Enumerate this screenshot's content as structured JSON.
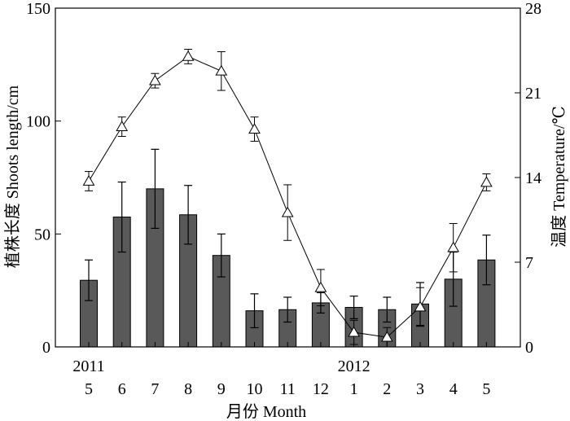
{
  "chart_data": {
    "type": "bar",
    "categories": [
      "5",
      "6",
      "7",
      "8",
      "9",
      "10",
      "11",
      "12",
      "1",
      "2",
      "3",
      "4",
      "5"
    ],
    "year_labels": [
      {
        "text": "2011",
        "category_index": 0
      },
      {
        "text": "2012",
        "category_index": 8
      }
    ],
    "xlabel": "月份 Month",
    "ylabel": "植株长度 Shoots length/cm",
    "ylabel_right": "温度 Temperature/℃",
    "ylim": [
      0,
      150
    ],
    "yticks": [
      0,
      50,
      100,
      150
    ],
    "ylim_right": [
      0,
      28
    ],
    "yticks_right": [
      0,
      7,
      14,
      21,
      28
    ],
    "grid": false,
    "series": [
      {
        "type": "bar",
        "axis": "left",
        "values": [
          29.5,
          57.5,
          70,
          58.5,
          40.5,
          16,
          16.5,
          19.5,
          17.5,
          16.5,
          19,
          30,
          38.5
        ],
        "errors": [
          9,
          15.5,
          17.5,
          13,
          9.5,
          7.5,
          5.5,
          4.5,
          5,
          5.5,
          9.5,
          12,
          11
        ],
        "color": "#595959"
      },
      {
        "type": "line",
        "axis": "right",
        "marker": "open-triangle",
        "values": [
          13.7,
          18.2,
          22.0,
          24.0,
          22.8,
          18.0,
          11.1,
          4.9,
          1.2,
          0.8,
          3.3,
          8.2,
          13.6
        ],
        "errors": [
          0.8,
          0.8,
          0.6,
          0.6,
          1.6,
          1.0,
          2.3,
          1.5,
          1.0,
          0.8,
          1.6,
          2.0,
          0.7
        ],
        "color": "#000000"
      }
    ]
  }
}
